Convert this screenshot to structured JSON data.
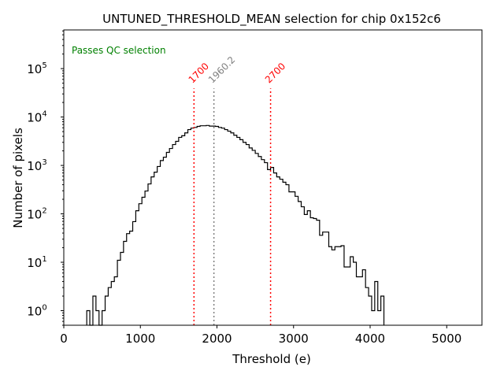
{
  "chart_data": {
    "type": "histogram",
    "title": "UNTUNED_THRESHOLD_MEAN selection for chip 0x152c6",
    "xlabel": "Threshold (e)",
    "ylabel": "Number of pixels",
    "xlim": [
      0,
      5460
    ],
    "ylim": [
      0.5,
      630000
    ],
    "yscale": "log",
    "grid": false,
    "x_ticks": [
      0,
      1000,
      2000,
      3000,
      4000,
      5000
    ],
    "x_tick_labels": [
      "0",
      "1000",
      "2000",
      "3000",
      "4000",
      "5000"
    ],
    "y_ticks": [
      1,
      10,
      100,
      1000,
      10000,
      100000
    ],
    "y_tick_labels": [
      {
        "base": "10",
        "exp": "0"
      },
      {
        "base": "10",
        "exp": "1"
      },
      {
        "base": "10",
        "exp": "2"
      },
      {
        "base": "10",
        "exp": "3"
      },
      {
        "base": "10",
        "exp": "4"
      },
      {
        "base": "10",
        "exp": "5"
      }
    ],
    "bin_start": 300,
    "bin_width": 40,
    "counts": [
      1,
      0,
      2,
      1,
      0,
      1,
      2,
      3,
      4,
      5,
      11,
      16,
      27,
      39,
      44,
      69,
      116,
      162,
      220,
      296,
      415,
      580,
      727,
      950,
      1260,
      1480,
      1860,
      2240,
      2700,
      3140,
      3800,
      4100,
      4700,
      5500,
      5900,
      6100,
      6400,
      6600,
      6600,
      6700,
      6500,
      6500,
      6400,
      6100,
      5900,
      5500,
      5100,
      4700,
      4200,
      3800,
      3400,
      3000,
      2700,
      2300,
      2050,
      1770,
      1530,
      1320,
      1140,
      820,
      910,
      700,
      580,
      520,
      450,
      400,
      285,
      285,
      230,
      180,
      140,
      97,
      116,
      83,
      80,
      74,
      36,
      42,
      42,
      21,
      18,
      21,
      21,
      22,
      8,
      8,
      13,
      10,
      5,
      5,
      7,
      3,
      2,
      1,
      4,
      1,
      2
    ],
    "histogram_color": "#000000",
    "vlines": [
      {
        "x": 1700,
        "label": "1700",
        "color": "#ff0000",
        "ymax": 39000
      },
      {
        "x": 1960.2,
        "label": "1960.2",
        "color": "#808080",
        "ymax": 39000
      },
      {
        "x": 2700,
        "label": "2700",
        "color": "#ff0000",
        "ymax": 39000
      }
    ],
    "annotations": [
      {
        "text": "Passes QC selection",
        "color": "#008000",
        "position": "top-left"
      }
    ]
  }
}
